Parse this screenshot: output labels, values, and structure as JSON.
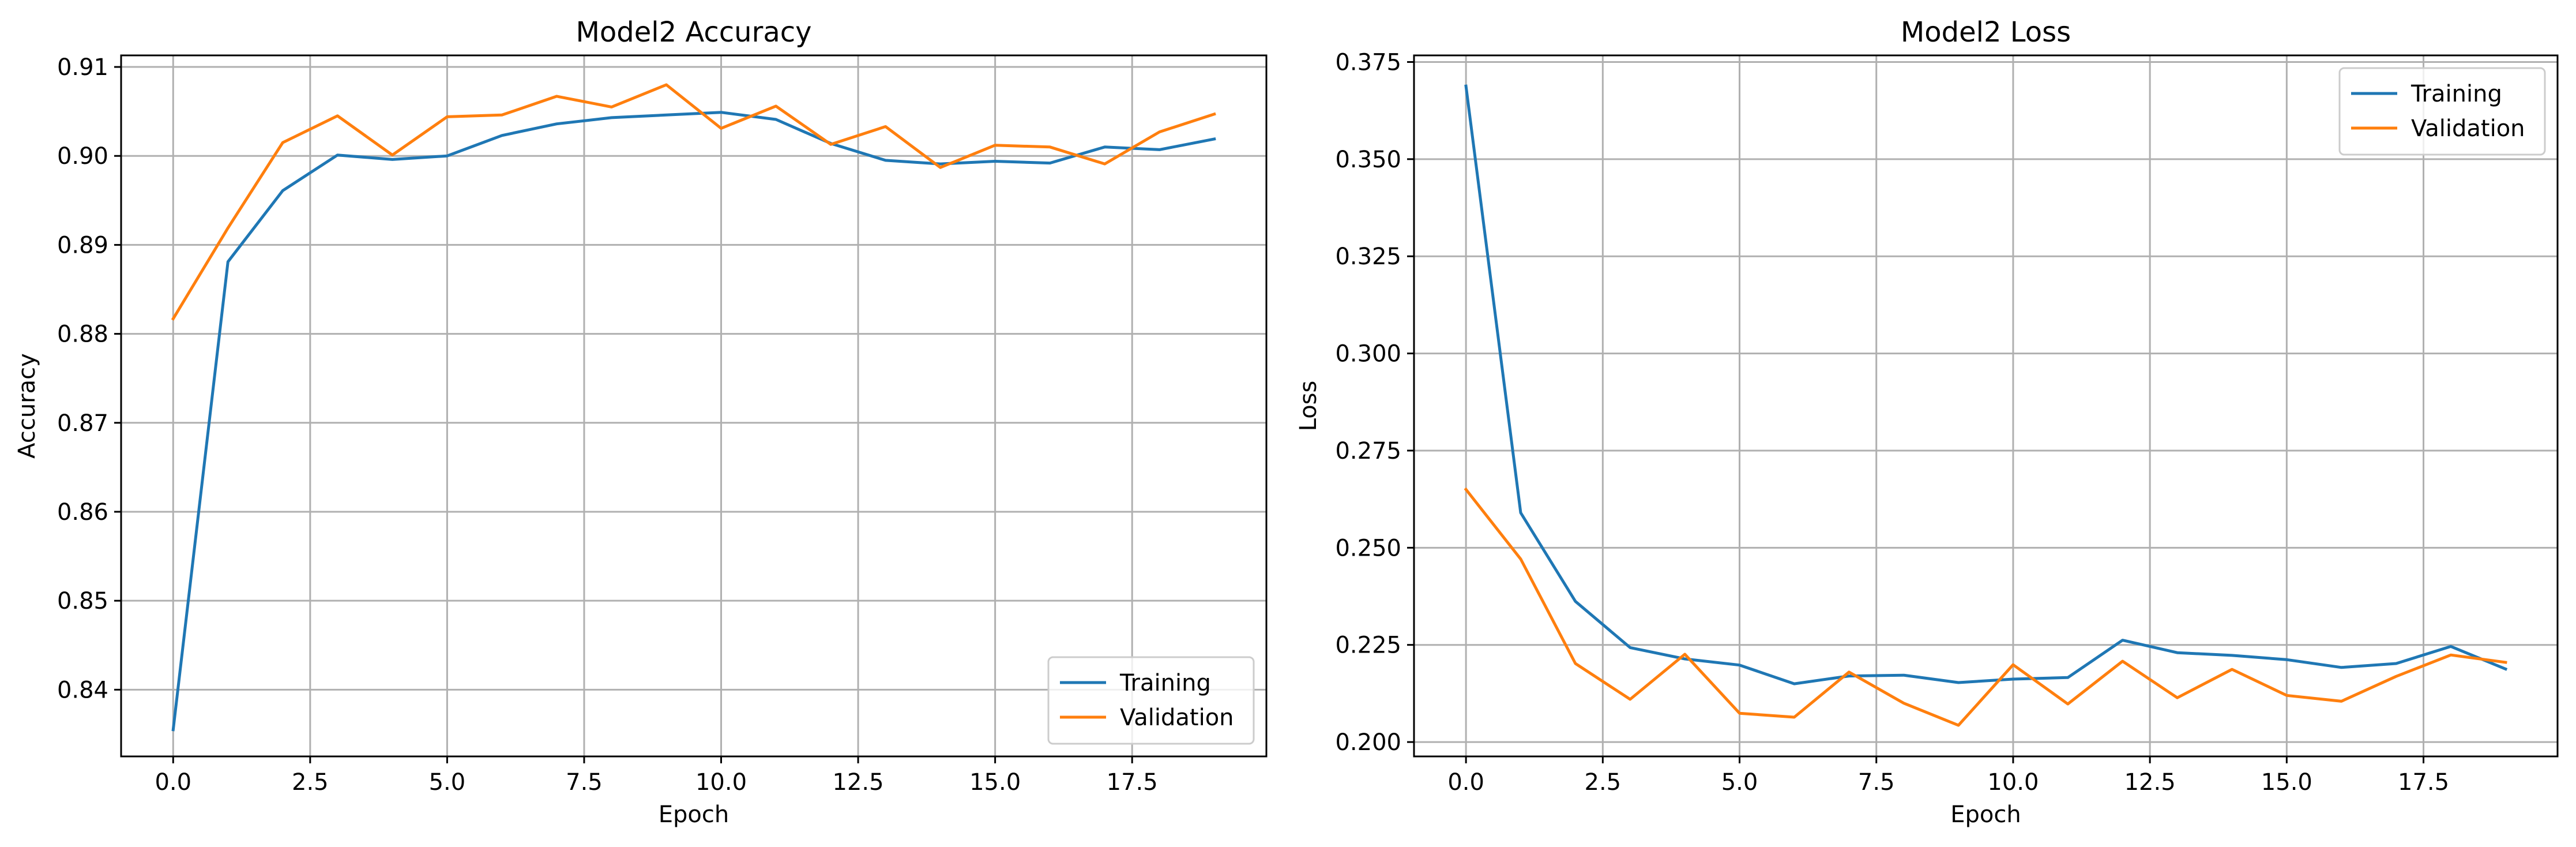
{
  "chart_data": [
    {
      "type": "line",
      "title": "Model2 Accuracy",
      "xlabel": "Epoch",
      "ylabel": "Accuracy",
      "xlim": [
        -0.95,
        19.95
      ],
      "ylim": [
        0.8325,
        0.9113
      ],
      "xticks": [
        0.0,
        2.5,
        5.0,
        7.5,
        10.0,
        12.5,
        15.0,
        17.5
      ],
      "xtick_labels": [
        "0.0",
        "2.5",
        "5.0",
        "7.5",
        "10.0",
        "12.5",
        "15.0",
        "17.5"
      ],
      "yticks": [
        0.84,
        0.85,
        0.86,
        0.87,
        0.88,
        0.89,
        0.9,
        0.91
      ],
      "ytick_labels": [
        "0.84",
        "0.85",
        "0.86",
        "0.87",
        "0.88",
        "0.89",
        "0.90",
        "0.91"
      ],
      "grid": true,
      "legend_position": "lower-right",
      "x": [
        0,
        1,
        2,
        3,
        4,
        5,
        6,
        7,
        8,
        9,
        10,
        11,
        12,
        13,
        14,
        15,
        16,
        17,
        18,
        19
      ],
      "series": [
        {
          "name": "Training",
          "color": "#1f77b4",
          "values": [
            0.8355,
            0.8881,
            0.8961,
            0.9001,
            0.8996,
            0.9,
            0.9023,
            0.9036,
            0.9043,
            0.9046,
            0.9049,
            0.9041,
            0.9014,
            0.8995,
            0.8991,
            0.8994,
            0.8992,
            0.901,
            0.9007,
            0.9019
          ]
        },
        {
          "name": "Validation",
          "color": "#ff7f0e",
          "values": [
            0.8817,
            0.8919,
            0.9015,
            0.9045,
            0.9001,
            0.9044,
            0.9046,
            0.9067,
            0.9055,
            0.908,
            0.9031,
            0.9056,
            0.9013,
            0.9033,
            0.8987,
            0.9012,
            0.901,
            0.8991,
            0.9027,
            0.9047
          ]
        }
      ]
    },
    {
      "type": "line",
      "title": "Model2 Loss",
      "xlabel": "Epoch",
      "ylabel": "Loss",
      "xlim": [
        -0.95,
        19.95
      ],
      "ylim": [
        0.1963,
        0.3767
      ],
      "xticks": [
        0.0,
        2.5,
        5.0,
        7.5,
        10.0,
        12.5,
        15.0,
        17.5
      ],
      "xtick_labels": [
        "0.0",
        "2.5",
        "5.0",
        "7.5",
        "10.0",
        "12.5",
        "15.0",
        "17.5"
      ],
      "yticks": [
        0.2,
        0.225,
        0.25,
        0.275,
        0.3,
        0.325,
        0.35,
        0.375
      ],
      "ytick_labels": [
        "0.200",
        "0.225",
        "0.250",
        "0.275",
        "0.300",
        "0.325",
        "0.350",
        "0.375"
      ],
      "grid": true,
      "legend_position": "upper-right",
      "x": [
        0,
        1,
        2,
        3,
        4,
        5,
        6,
        7,
        8,
        9,
        10,
        11,
        12,
        13,
        14,
        15,
        16,
        17,
        18,
        19
      ],
      "series": [
        {
          "name": "Training",
          "color": "#1f77b4",
          "values": [
            0.3688,
            0.259,
            0.2362,
            0.2243,
            0.2214,
            0.2198,
            0.215,
            0.217,
            0.2172,
            0.2153,
            0.2162,
            0.2166,
            0.2262,
            0.223,
            0.2223,
            0.2212,
            0.2192,
            0.2202,
            0.2246,
            0.2188
          ]
        },
        {
          "name": "Validation",
          "color": "#ff7f0e",
          "values": [
            0.265,
            0.2471,
            0.2202,
            0.211,
            0.2226,
            0.2074,
            0.2064,
            0.218,
            0.21,
            0.2043,
            0.2199,
            0.2098,
            0.2208,
            0.2114,
            0.2187,
            0.212,
            0.2105,
            0.2169,
            0.2224,
            0.2205
          ]
        }
      ]
    }
  ]
}
